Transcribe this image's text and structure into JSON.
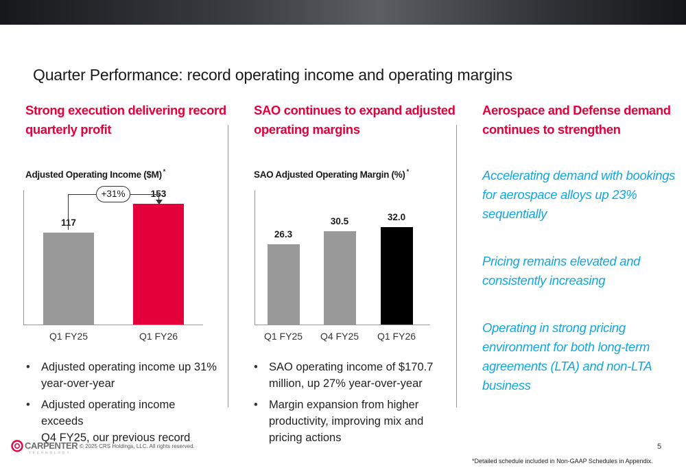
{
  "header": {
    "title": "Quarter Performance: record operating income and operating margins"
  },
  "columns": [
    {
      "heading": [
        "Strong execution delivering record",
        "quarterly profit"
      ],
      "chart_title": "Adjusted Operating Income ($M)",
      "chart_title_mark": "*",
      "growth_label": "+31%",
      "bullets": [
        [
          "Adjusted operating income up 31%",
          "year-over-year"
        ],
        [
          "Adjusted operating income exceeds",
          "Q4 FY25, our previous record"
        ]
      ]
    },
    {
      "heading": [
        "SAO continues to expand adjusted",
        "operating margins"
      ],
      "chart_title": "SAO Adjusted Operating Margin (%)",
      "chart_title_mark": "*",
      "bullets": [
        [
          "SAO operating income of $170.7",
          "million, up 27% year-over-year"
        ],
        [
          "Margin expansion from higher",
          "productivity, improving mix and",
          "pricing actions"
        ]
      ]
    },
    {
      "heading": [
        "Aerospace and Defense demand",
        "continues to strengthen"
      ],
      "highlights": [
        [
          "Accelerating demand with bookings",
          "for aerospace alloys up 23%",
          "sequentially"
        ],
        [
          "Pricing remains elevated and",
          "consistently increasing"
        ],
        [
          "Operating in strong pricing",
          "environment for both long-term",
          "agreements (LTA) and non-LTA",
          "business"
        ]
      ]
    }
  ],
  "chart_data": [
    {
      "type": "bar",
      "title": "Adjusted Operating Income ($M)",
      "categories": [
        "Q1 FY25",
        "Q1 FY26"
      ],
      "values": [
        117,
        153
      ],
      "value_labels": [
        "117",
        "153"
      ],
      "colors": [
        "#999999",
        "#e4003b"
      ],
      "ylim": [
        0,
        200
      ]
    },
    {
      "type": "bar",
      "title": "SAO Adjusted Operating Margin (%)",
      "categories": [
        "Q1 FY25",
        "Q4 FY25",
        "Q1 FY26"
      ],
      "values": [
        26.3,
        30.5,
        32.0
      ],
      "value_labels": [
        "26.3",
        "30.5",
        "32.0"
      ],
      "colors": [
        "#999999",
        "#999999",
        "#000000"
      ],
      "ylim": [
        0,
        40
      ]
    }
  ],
  "footer": {
    "logo_text": "CARPENTER",
    "logo_tagline": "TECHNOLOGY",
    "copyright": "© 2025 CRS Holdings, LLC. All rights reserved.",
    "page_number": "5",
    "footnote": "*Detailed schedule included in Non-GAAP Schedules in Appendix."
  },
  "colors": {
    "accent_red": "#e4003b",
    "accent_blue": "#12a6e0",
    "bar_gray": "#999999",
    "bar_black": "#000000"
  }
}
